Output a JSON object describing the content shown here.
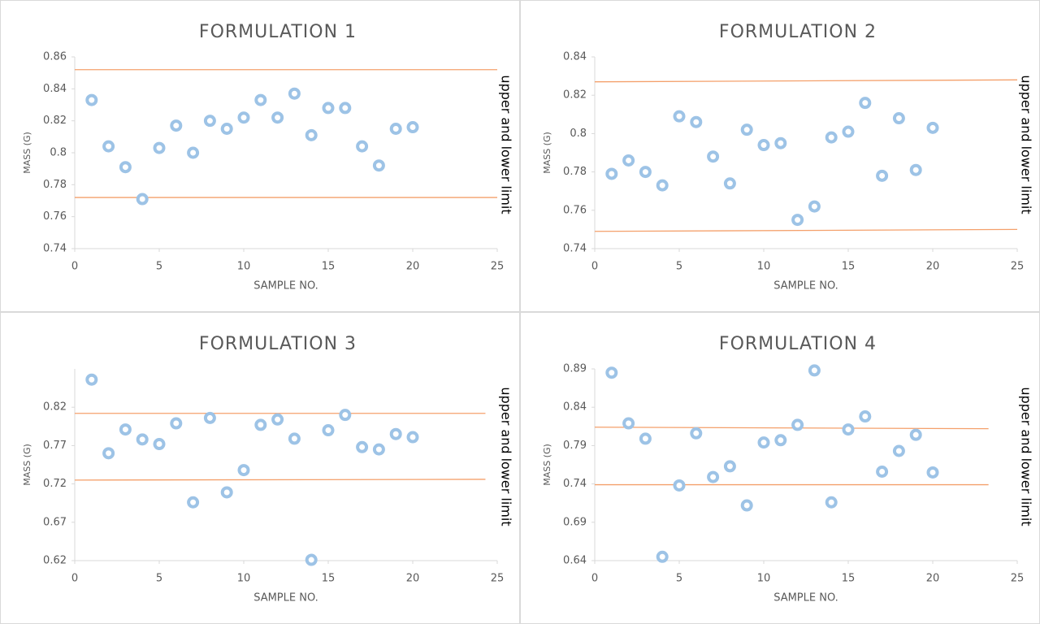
{
  "chart_data": [
    {
      "type": "scatter",
      "title": "FORMULATION 1",
      "xlabel": "SAMPLE NO.",
      "ylabel": "MASS (G)",
      "xlim": [
        0,
        25
      ],
      "xticks": [
        0,
        5,
        10,
        15,
        20,
        25
      ],
      "ylim": [
        0.74,
        0.86
      ],
      "yticks": [
        0.74,
        0.76,
        0.78,
        0.8,
        0.82,
        0.84,
        0.86
      ],
      "x": [
        1,
        2,
        3,
        4,
        5,
        6,
        7,
        8,
        9,
        10,
        11,
        12,
        13,
        14,
        15,
        16,
        17,
        18,
        19,
        20
      ],
      "series": [
        {
          "color": "#9dc3e6",
          "values": [
            0.833,
            0.804,
            0.791,
            0.771,
            0.803,
            0.817,
            0.8,
            0.82,
            0.815,
            0.822,
            0.833,
            0.822,
            0.837,
            0.811,
            0.828,
            0.828,
            0.804,
            0.792,
            0.815,
            0.816
          ]
        }
      ],
      "limits": {
        "label": "upper and lower limit",
        "color": "#f4a06b",
        "x": [
          0,
          25
        ],
        "upper": [
          0.852,
          0.852
        ],
        "lower": [
          0.772,
          0.772
        ]
      }
    },
    {
      "type": "scatter",
      "title": "FORMULATION 2",
      "xlabel": "SAMPLE NO.",
      "ylabel": "MASS (G)",
      "xlim": [
        0,
        25
      ],
      "xticks": [
        0,
        5,
        10,
        15,
        20,
        25
      ],
      "ylim": [
        0.74,
        0.84
      ],
      "yticks": [
        0.74,
        0.76,
        0.78,
        0.8,
        0.82,
        0.84
      ],
      "x": [
        1,
        2,
        3,
        4,
        5,
        6,
        7,
        8,
        9,
        10,
        11,
        12,
        13,
        14,
        15,
        16,
        17,
        18,
        19,
        20
      ],
      "series": [
        {
          "color": "#9dc3e6",
          "values": [
            0.779,
            0.786,
            0.78,
            0.773,
            0.809,
            0.806,
            0.788,
            0.774,
            0.802,
            0.794,
            0.795,
            0.755,
            0.762,
            0.798,
            0.801,
            0.816,
            0.778,
            0.808,
            0.781,
            0.803
          ]
        }
      ],
      "limits": {
        "label": "upper and lower limit",
        "color": "#f4a06b",
        "x": [
          0,
          25
        ],
        "upper": [
          0.827,
          0.828
        ],
        "lower": [
          0.749,
          0.75
        ]
      }
    },
    {
      "type": "scatter",
      "title": "FORMULATION 3",
      "xlabel": "SAMPLE NO.",
      "ylabel": "MASS (G)",
      "xlim": [
        0,
        25
      ],
      "xticks": [
        0,
        5,
        10,
        15,
        20,
        25
      ],
      "ylim": [
        0.62,
        0.87
      ],
      "yticks": [
        0.62,
        0.67,
        0.72,
        0.77,
        0.82
      ],
      "x": [
        1,
        2,
        3,
        4,
        5,
        6,
        7,
        8,
        9,
        10,
        11,
        12,
        13,
        14,
        15,
        16,
        17,
        18,
        19,
        20
      ],
      "series": [
        {
          "color": "#9dc3e6",
          "values": [
            0.856,
            0.76,
            0.791,
            0.778,
            0.772,
            0.799,
            0.696,
            0.806,
            0.709,
            0.738,
            0.797,
            0.804,
            0.779,
            0.621,
            0.79,
            0.81,
            0.768,
            0.765,
            0.785,
            0.781
          ]
        }
      ],
      "limits": {
        "label": "upper and lower limit",
        "color": "#f4a06b",
        "x": [
          0,
          24.3
        ],
        "upper": [
          0.812,
          0.812
        ],
        "lower": [
          0.725,
          0.726
        ]
      }
    },
    {
      "type": "scatter",
      "title": "FORMULATION 4",
      "xlabel": "SAMPLE NO.",
      "ylabel": "MASS (G)",
      "xlim": [
        0,
        25
      ],
      "xticks": [
        0,
        5,
        10,
        15,
        20,
        25
      ],
      "ylim": [
        0.64,
        0.89
      ],
      "yticks": [
        0.64,
        0.69,
        0.74,
        0.79,
        0.84,
        0.89
      ],
      "x": [
        1,
        2,
        3,
        4,
        5,
        6,
        7,
        8,
        9,
        10,
        11,
        12,
        13,
        14,
        15,
        16,
        17,
        18,
        19,
        20
      ],
      "series": [
        {
          "color": "#9dc3e6",
          "values": [
            0.885,
            0.819,
            0.799,
            0.645,
            0.738,
            0.806,
            0.749,
            0.763,
            0.712,
            0.794,
            0.797,
            0.817,
            0.888,
            0.716,
            0.811,
            0.828,
            0.756,
            0.783,
            0.804,
            0.755
          ]
        }
      ],
      "limits": {
        "label": "upper and lower limit",
        "color": "#f4a06b",
        "x": [
          0,
          23.3
        ],
        "upper": [
          0.814,
          0.812
        ],
        "lower": [
          0.739,
          0.739
        ]
      }
    }
  ]
}
